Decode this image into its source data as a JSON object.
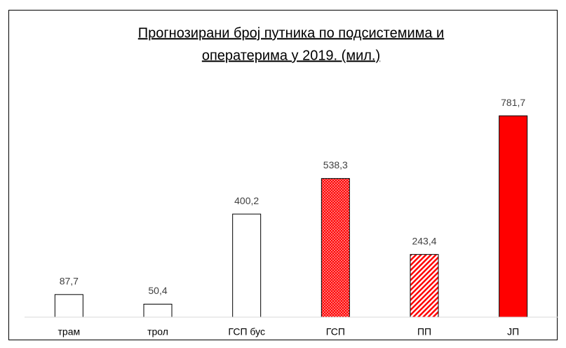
{
  "chart_data": {
    "type": "bar",
    "title": [
      "Прогнозирани број путника по подсистемима и",
      "оператерима у 2019. (мил.)"
    ],
    "categories": [
      "трам",
      "трол",
      "ГСП бус",
      "ГСП",
      "ПП",
      "ЈП"
    ],
    "values": [
      87.7,
      50.4,
      400.2,
      538.3,
      243.4,
      781.7
    ],
    "value_labels": [
      "87,7",
      "50,4",
      "400,2",
      "538,3",
      "243,4",
      "781,7"
    ],
    "colors": [
      "#ffffff",
      "#ffffff",
      "#ffffff",
      "#ff0000",
      "#ff0000",
      "#ff0000"
    ],
    "patterns": [
      "none",
      "none",
      "none",
      "dots",
      "hatch",
      "none"
    ],
    "ylim": [
      0,
      850
    ]
  }
}
